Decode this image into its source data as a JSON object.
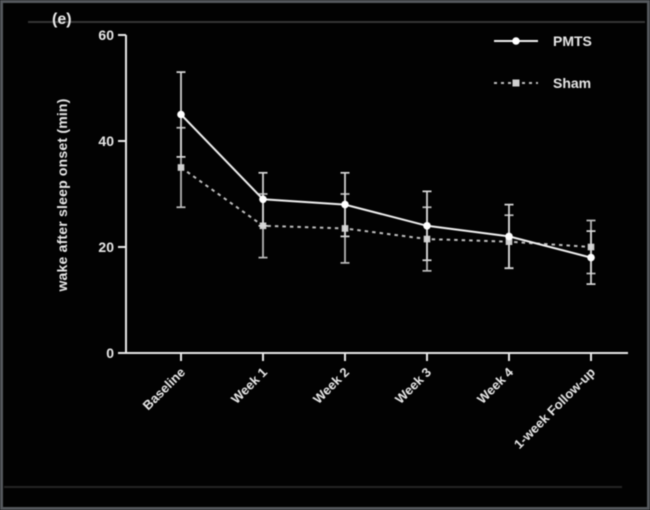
{
  "panel_label": "(e)",
  "chart_data": {
    "type": "line",
    "title": "",
    "xlabel": "",
    "ylabel": "wake after sleep onset (min)",
    "ylim": [
      0,
      60
    ],
    "yticks": [
      0,
      20,
      40,
      60
    ],
    "grid": false,
    "legend_position": "top-right",
    "background": "#020202",
    "axis_color": "#e8e8e8",
    "categories": [
      "Baseline",
      "Week 1",
      "Week 2",
      "Week 3",
      "Week 4",
      "1-week Follow-up"
    ],
    "series": [
      {
        "name": "PMTS",
        "line_style": "solid",
        "marker": "circle",
        "color": "#efefef",
        "error_color": "#d8d8d8",
        "values": [
          45,
          29,
          28,
          24,
          22,
          18
        ],
        "errors": [
          8,
          5,
          6,
          6.5,
          6,
          5
        ]
      },
      {
        "name": "Sham",
        "line_style": "dashed",
        "marker": "square",
        "color": "#bdbdbd",
        "error_color": "#bdbdbd",
        "values": [
          35,
          24,
          23.5,
          21.5,
          21,
          20
        ],
        "errors": [
          7.5,
          6,
          6.5,
          6,
          5,
          5
        ]
      }
    ]
  }
}
